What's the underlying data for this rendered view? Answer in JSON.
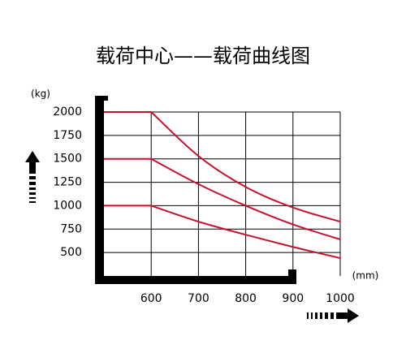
{
  "chart_data": {
    "type": "line",
    "title": "载荷中心——载荷曲线图",
    "y_unit": "(kg)",
    "x_unit": "(mm)",
    "x": [
      500,
      600,
      700,
      800,
      900,
      1000
    ],
    "series": [
      {
        "color": "#c8102e",
        "values": [
          2000,
          2000,
          1530,
          1200,
          980,
          830
        ]
      },
      {
        "color": "#c8102e",
        "values": [
          1500,
          1500,
          1230,
          1000,
          800,
          640
        ]
      },
      {
        "color": "#c8102e",
        "values": [
          1000,
          1000,
          830,
          690,
          560,
          440
        ]
      }
    ],
    "xlim": [
      500,
      1000
    ],
    "xticks": [
      600,
      700,
      800,
      900,
      1000
    ],
    "ylim": [
      250,
      2000
    ],
    "yticks": [
      500,
      750,
      1000,
      1250,
      1500,
      1750,
      2000
    ],
    "grid": true
  }
}
